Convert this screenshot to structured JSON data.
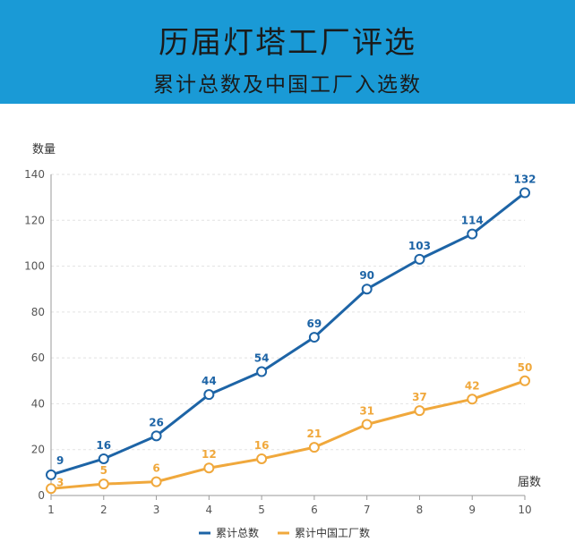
{
  "header": {
    "title": "历届灯塔工厂评选",
    "subtitle": "累计总数及中国工厂入选数"
  },
  "colors": {
    "header_bg": "#1a9ad6",
    "series_total": "#1d64a6",
    "series_china": "#f0a83c"
  },
  "chart_data": {
    "type": "line",
    "title": "历届灯塔工厂评选",
    "subtitle": "累计总数及中国工厂入选数",
    "xlabel": "届数",
    "ylabel": "数量",
    "x": [
      1,
      2,
      3,
      4,
      5,
      6,
      7,
      8,
      9,
      10
    ],
    "ylim": [
      0,
      140
    ],
    "yticks": [
      0,
      20,
      40,
      60,
      80,
      100,
      120,
      140
    ],
    "grid": true,
    "legend_position": "bottom-center",
    "series": [
      {
        "name": "累计总数",
        "color": "#1d64a6",
        "values": [
          9,
          16,
          26,
          44,
          54,
          69,
          90,
          103,
          114,
          132
        ]
      },
      {
        "name": "累计中国工厂数",
        "color": "#f0a83c",
        "values": [
          3,
          5,
          6,
          12,
          16,
          21,
          31,
          37,
          42,
          50
        ]
      }
    ]
  }
}
